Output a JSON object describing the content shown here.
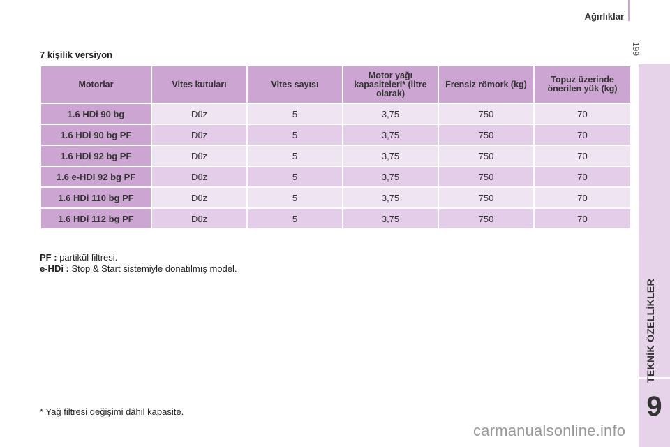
{
  "header": {
    "title": "Ağırlıklar",
    "page_number": "199"
  },
  "sidebar": {
    "chapter_title": "TEKNİK ÖZELLİKLER",
    "chapter_number": "9"
  },
  "section_title": "7 kişilik versiyon",
  "table": {
    "headers": [
      "Motorlar",
      "Vites kutuları",
      "Vites sayısı",
      "Motor yağı kapasiteleri* (litre olarak)",
      "Frensiz römork (kg)",
      "Topuz üzerinde önerilen yük (kg)"
    ],
    "rows": [
      [
        "1.6 HDi 90 bg",
        "Düz",
        "5",
        "3,75",
        "750",
        "70"
      ],
      [
        "1.6 HDi 90 bg PF",
        "Düz",
        "5",
        "3,75",
        "750",
        "70"
      ],
      [
        "1.6 HDi 92 bg PF",
        "Düz",
        "5",
        "3,75",
        "750",
        "70"
      ],
      [
        "1.6 e-HDI 92 bg PF",
        "Düz",
        "5",
        "3,75",
        "750",
        "70"
      ],
      [
        "1.6 HDi 110 bg PF",
        "Düz",
        "5",
        "3,75",
        "750",
        "70"
      ],
      [
        "1.6 HDi 112 bg PF",
        "Düz",
        "5",
        "3,75",
        "750",
        "70"
      ]
    ]
  },
  "notes": [
    {
      "term": "PF :",
      "text": "partikül filtresi."
    },
    {
      "term": "e-HDi :",
      "text": "Stop & Start sistemiyle donatılmış model."
    }
  ],
  "asterisk_note": "* Yağ filtresi değişimi dâhil kapasite.",
  "watermark": "carmanualsonline.info",
  "colors": {
    "header_cell": "#cca5d2",
    "row_light": "#efe4f2",
    "row_dark": "#e3cde8",
    "sidebar": "#e6d3ea"
  }
}
